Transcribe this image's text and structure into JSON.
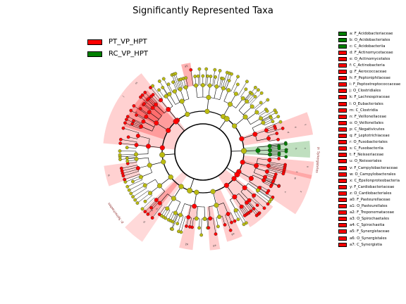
{
  "title": "Significantly Represented Taxa",
  "colors": {
    "PT_VP_HPT": "#ff0000",
    "RC_VP_HPT": "#008000",
    "node": "#bbbb11"
  },
  "chart_data": {
    "type": "cladogram",
    "title": "Significantly Represented Taxa",
    "groups": [
      {
        "name": "PT_VP_HPT",
        "color": "#ff0000"
      },
      {
        "name": "RC_VP_HPT",
        "color": "#008000"
      }
    ],
    "taxa": [
      {
        "code": "a",
        "label": "a: F_Acidobacteriaceae",
        "group": "RC_VP_HPT"
      },
      {
        "code": "b",
        "label": "b: O_Acidobacteriales",
        "group": "RC_VP_HPT"
      },
      {
        "code": "c",
        "label": "c: C_Acidobacteriia",
        "group": "RC_VP_HPT"
      },
      {
        "code": "d",
        "label": "d: F_Actinomycetaceae",
        "group": "PT_VP_HPT"
      },
      {
        "code": "e",
        "label": "e: O_Actinomycetales",
        "group": "PT_VP_HPT"
      },
      {
        "code": "f",
        "label": "f: C_Actinobacteria",
        "group": "PT_VP_HPT"
      },
      {
        "code": "g",
        "label": "g: F_Aerococcaceae",
        "group": "PT_VP_HPT"
      },
      {
        "code": "h",
        "label": "h: F_Peptoniphilaceae",
        "group": "PT_VP_HPT"
      },
      {
        "code": "i",
        "label": "i: F_Peptostreptococcaceae",
        "group": "PT_VP_HPT"
      },
      {
        "code": "j",
        "label": "j: O_Clostridiales",
        "group": "PT_VP_HPT"
      },
      {
        "code": "k",
        "label": "k: F_Lachnospiraceae",
        "group": "PT_VP_HPT"
      },
      {
        "code": "l",
        "label": "l: O_Eubacteriales",
        "group": "PT_VP_HPT"
      },
      {
        "code": "m",
        "label": "m: C_Clostridia",
        "group": "PT_VP_HPT"
      },
      {
        "code": "n",
        "label": "n: F_Veillonellaceae",
        "group": "PT_VP_HPT"
      },
      {
        "code": "o",
        "label": "o: O_Veillonellales",
        "group": "PT_VP_HPT"
      },
      {
        "code": "p",
        "label": "p: C_Negativicutes",
        "group": "PT_VP_HPT"
      },
      {
        "code": "q",
        "label": "q: F_Leptotrichiaceae",
        "group": "PT_VP_HPT"
      },
      {
        "code": "r",
        "label": "r: O_Fusobacteriales",
        "group": "PT_VP_HPT"
      },
      {
        "code": "s",
        "label": "s: C_Fusobacteriia",
        "group": "PT_VP_HPT"
      },
      {
        "code": "t",
        "label": "t: F_Neisseriaceae",
        "group": "PT_VP_HPT"
      },
      {
        "code": "u",
        "label": "u: O_Neisseriales",
        "group": "PT_VP_HPT"
      },
      {
        "code": "v",
        "label": "v: F_Campylobacteraceae",
        "group": "PT_VP_HPT"
      },
      {
        "code": "w",
        "label": "w: O_Campylobacterales",
        "group": "PT_VP_HPT"
      },
      {
        "code": "x",
        "label": "x: C_Epsilonproteobacteria",
        "group": "PT_VP_HPT"
      },
      {
        "code": "y",
        "label": "y: F_Cardiobacteriaceae",
        "group": "PT_VP_HPT"
      },
      {
        "code": "z",
        "label": "z: O_Cardiobacteriales",
        "group": "PT_VP_HPT"
      },
      {
        "code": "a0",
        "label": "a0: F_Pasteurellaceae",
        "group": "PT_VP_HPT"
      },
      {
        "code": "a1",
        "label": "a1: O_Pasteurellales",
        "group": "PT_VP_HPT"
      },
      {
        "code": "a2",
        "label": "a2: F_Treponemataceae",
        "group": "PT_VP_HPT"
      },
      {
        "code": "a3",
        "label": "a3: O_Spirochaetales",
        "group": "PT_VP_HPT"
      },
      {
        "code": "a4",
        "label": "a4: C_Spirochaetia",
        "group": "PT_VP_HPT"
      },
      {
        "code": "a5",
        "label": "a5: F_Synergistaceae",
        "group": "PT_VP_HPT"
      },
      {
        "code": "a6",
        "label": "a6: O_Synergistales",
        "group": "PT_VP_HPT"
      },
      {
        "code": "a7",
        "label": "a7: C_Synergistia",
        "group": "PT_VP_HPT"
      }
    ],
    "clade_labels": [
      {
        "text": "p: Synergistetes",
        "group": "PT_VP_HPT"
      },
      {
        "text": "p: Spirochaetes",
        "group": "PT_VP_HPT"
      }
    ]
  }
}
